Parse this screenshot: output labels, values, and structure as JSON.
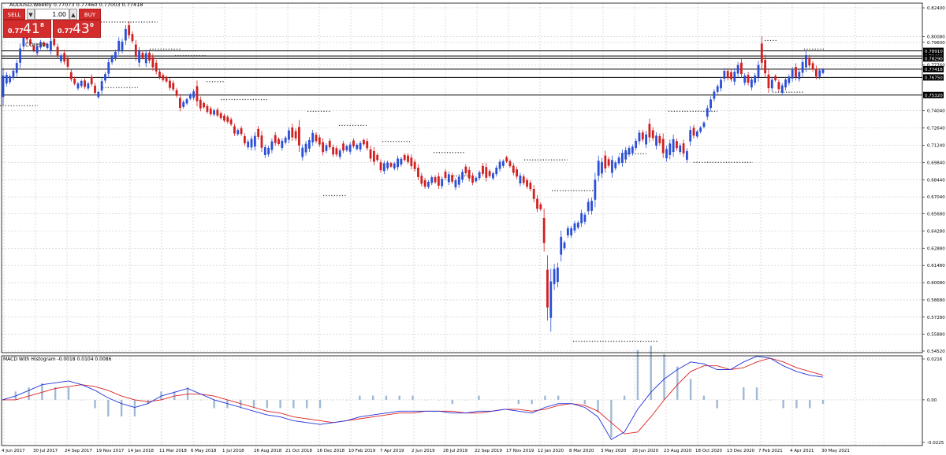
{
  "chart_header": "AUDUSD,Weekly  0.77073 0.77460 0.77003 0.77418",
  "indicator_label": "MACD With Histogram -0.0018 0.0104 0.0086",
  "indicator_name_overlay": "COresta",
  "trade_panel": {
    "sell_label": "SELL",
    "buy_label": "BUY",
    "lot_value": "1.00",
    "lot_down_arrow": "▼",
    "lot_up_arrow": "▲",
    "sell_price_small": "0.77",
    "sell_price_big": "41",
    "sell_price_sup": "8",
    "buy_price_small": "0.77",
    "buy_price_big": "43",
    "buy_price_sup": "0"
  },
  "colors": {
    "bull": "#2b4fd6",
    "bear": "#d21f1f",
    "grid": "#c8c8c8",
    "macd_line": "#2233dd",
    "signal_line": "#dd2222",
    "histogram": "#9fb9d6"
  },
  "chart_data": [
    {
      "type": "candlestick",
      "title": "AUDUSD,Weekly  0.77073 0.77460 0.77003 0.77418",
      "x_tick_labels": [
        "4 Jun 2017",
        "30 Jul 2017",
        "24 Sep 2017",
        "19 Nov 2017",
        "14 Jan 2018",
        "11 Mar 2018",
        "6 May 2018",
        "1 Jul 2018",
        "26 Aug 2018",
        "21 Oct 2018",
        "16 Dec 2018",
        "10 Feb 2019",
        "7 Apr 2019",
        "2 Jun 2019",
        "28 Jul 2019",
        "22 Sep 2019",
        "17 Nov 2019",
        "12 Jan 2020",
        "8 Mar 2020",
        "3 May 2020",
        "28 Jun 2020",
        "23 Aug 2020",
        "18 Oct 2020",
        "13 Dec 2020",
        "7 Feb 2021",
        "4 Apr 2021",
        "30 May 2021"
      ],
      "y_tick_labels": [
        "0.82400",
        "0.80080",
        "0.79600",
        "0.77760",
        "0.74040",
        "0.72640",
        "0.71240",
        "0.69840",
        "0.68440",
        "0.67040",
        "0.65680",
        "0.64280",
        "0.62880",
        "0.61480",
        "0.60080",
        "0.58680",
        "0.57280",
        "0.55880",
        "0.54520"
      ],
      "ylim": [
        0.5452,
        0.824
      ],
      "horizontal_levels": [
        {
          "label": "0.78910",
          "value": 0.7891
        },
        {
          "label": "0.78490",
          "value": 0.7849
        },
        {
          "label": "0.78290",
          "value": 0.7829
        },
        {
          "label": "0.77418",
          "value": 0.77418
        },
        {
          "label": "0.76750",
          "value": 0.7675
        },
        {
          "label": "0.75320",
          "value": 0.7532
        }
      ],
      "candles": [
        [
          0.745,
          0.775
        ],
        [
          0.76,
          0.772
        ],
        [
          0.762,
          0.77
        ],
        [
          0.765,
          0.775
        ],
        [
          0.768,
          0.782
        ],
        [
          0.775,
          0.795
        ],
        [
          0.79,
          0.802
        ],
        [
          0.795,
          0.812
        ],
        [
          0.793,
          0.8
        ],
        [
          0.788,
          0.795
        ],
        [
          0.785,
          0.795
        ],
        [
          0.79,
          0.798
        ],
        [
          0.792,
          0.797
        ],
        [
          0.79,
          0.796
        ],
        [
          0.786,
          0.8
        ],
        [
          0.792,
          0.801
        ],
        [
          0.783,
          0.795
        ],
        [
          0.779,
          0.787
        ],
        [
          0.778,
          0.79
        ],
        [
          0.774,
          0.785
        ],
        [
          0.764,
          0.774
        ],
        [
          0.761,
          0.768
        ],
        [
          0.757,
          0.764
        ],
        [
          0.759,
          0.766
        ],
        [
          0.758,
          0.767
        ],
        [
          0.757,
          0.764
        ],
        [
          0.76,
          0.77
        ],
        [
          0.753,
          0.763
        ],
        [
          0.75,
          0.757
        ],
        [
          0.754,
          0.767
        ],
        [
          0.763,
          0.772
        ],
        [
          0.767,
          0.783
        ],
        [
          0.778,
          0.786
        ],
        [
          0.781,
          0.79
        ],
        [
          0.786,
          0.8
        ],
        [
          0.787,
          0.799
        ],
        [
          0.794,
          0.81
        ],
        [
          0.799,
          0.813
        ],
        [
          0.795,
          0.805
        ],
        [
          0.781,
          0.798
        ],
        [
          0.776,
          0.792
        ],
        [
          0.782,
          0.789
        ],
        [
          0.776,
          0.79
        ],
        [
          0.779,
          0.79
        ],
        [
          0.773,
          0.787
        ],
        [
          0.77,
          0.782
        ],
        [
          0.766,
          0.774
        ],
        [
          0.764,
          0.771
        ],
        [
          0.763,
          0.769
        ],
        [
          0.757,
          0.767
        ],
        [
          0.756,
          0.765
        ],
        [
          0.751,
          0.759
        ],
        [
          0.74,
          0.754
        ],
        [
          0.742,
          0.749
        ],
        [
          0.745,
          0.751
        ],
        [
          0.749,
          0.755
        ],
        [
          0.749,
          0.758
        ],
        [
          0.744,
          0.765
        ],
        [
          0.74,
          0.752
        ],
        [
          0.742,
          0.748
        ],
        [
          0.738,
          0.746
        ],
        [
          0.736,
          0.744
        ],
        [
          0.736,
          0.742
        ],
        [
          0.735,
          0.743
        ],
        [
          0.733,
          0.74
        ],
        [
          0.731,
          0.738
        ],
        [
          0.73,
          0.737
        ],
        [
          0.728,
          0.735
        ],
        [
          0.72,
          0.73
        ],
        [
          0.72,
          0.726
        ],
        [
          0.72,
          0.728
        ],
        [
          0.712,
          0.722
        ],
        [
          0.709,
          0.717
        ],
        [
          0.708,
          0.72
        ],
        [
          0.708,
          0.723
        ],
        [
          0.717,
          0.728
        ],
        [
          0.707,
          0.724
        ],
        [
          0.702,
          0.713
        ],
        [
          0.703,
          0.712
        ],
        [
          0.706,
          0.718
        ],
        [
          0.712,
          0.723
        ],
        [
          0.712,
          0.719
        ],
        [
          0.708,
          0.718
        ],
        [
          0.713,
          0.72
        ],
        [
          0.714,
          0.727
        ],
        [
          0.716,
          0.73
        ],
        [
          0.716,
          0.726
        ],
        [
          0.707,
          0.733
        ],
        [
          0.7,
          0.713
        ],
        [
          0.704,
          0.716
        ],
        [
          0.707,
          0.719
        ],
        [
          0.712,
          0.725
        ],
        [
          0.714,
          0.723
        ],
        [
          0.711,
          0.721
        ],
        [
          0.704,
          0.718
        ],
        [
          0.706,
          0.714
        ],
        [
          0.709,
          0.718
        ],
        [
          0.703,
          0.713
        ],
        [
          0.703,
          0.712
        ],
        [
          0.701,
          0.71
        ],
        [
          0.706,
          0.716
        ],
        [
          0.707,
          0.713
        ],
        [
          0.705,
          0.715
        ],
        [
          0.71,
          0.718
        ],
        [
          0.708,
          0.714
        ],
        [
          0.707,
          0.716
        ],
        [
          0.712,
          0.718
        ],
        [
          0.708,
          0.718
        ],
        [
          0.699,
          0.712
        ],
        [
          0.696,
          0.711
        ],
        [
          0.699,
          0.706
        ],
        [
          0.69,
          0.701
        ],
        [
          0.689,
          0.7
        ],
        [
          0.692,
          0.7
        ],
        [
          0.694,
          0.699
        ],
        [
          0.692,
          0.699
        ],
        [
          0.692,
          0.704
        ],
        [
          0.695,
          0.703
        ],
        [
          0.699,
          0.706
        ],
        [
          0.697,
          0.706
        ],
        [
          0.693,
          0.705
        ],
        [
          0.691,
          0.701
        ],
        [
          0.684,
          0.697
        ],
        [
          0.679,
          0.69
        ],
        [
          0.677,
          0.686
        ],
        [
          0.677,
          0.684
        ],
        [
          0.68,
          0.688
        ],
        [
          0.681,
          0.688
        ],
        [
          0.677,
          0.69
        ],
        [
          0.677,
          0.687
        ],
        [
          0.684,
          0.693
        ],
        [
          0.68,
          0.691
        ],
        [
          0.681,
          0.69
        ],
        [
          0.676,
          0.686
        ],
        [
          0.678,
          0.689
        ],
        [
          0.682,
          0.693
        ],
        [
          0.688,
          0.697
        ],
        [
          0.683,
          0.695
        ],
        [
          0.68,
          0.69
        ],
        [
          0.682,
          0.687
        ],
        [
          0.684,
          0.692
        ],
        [
          0.687,
          0.698
        ],
        [
          0.683,
          0.698
        ],
        [
          0.686,
          0.693
        ],
        [
          0.684,
          0.691
        ],
        [
          0.687,
          0.696
        ],
        [
          0.691,
          0.701
        ],
        [
          0.694,
          0.701
        ],
        [
          0.698,
          0.704
        ],
        [
          0.694,
          0.701
        ],
        [
          0.688,
          0.698
        ],
        [
          0.685,
          0.695
        ],
        [
          0.679,
          0.69
        ],
        [
          0.68,
          0.689
        ],
        [
          0.677,
          0.686
        ],
        [
          0.675,
          0.684
        ],
        [
          0.666,
          0.68
        ],
        [
          0.658,
          0.672
        ],
        [
          0.659,
          0.666
        ],
        [
          0.626,
          0.661
        ],
        [
          0.57,
          0.623
        ],
        [
          0.561,
          0.612
        ],
        [
          0.595,
          0.616
        ],
        [
          0.597,
          0.617
        ],
        [
          0.618,
          0.643
        ],
        [
          0.627,
          0.635
        ],
        [
          0.637,
          0.647
        ],
        [
          0.637,
          0.647
        ],
        [
          0.641,
          0.651
        ],
        [
          0.644,
          0.651
        ],
        [
          0.646,
          0.66
        ],
        [
          0.648,
          0.658
        ],
        [
          0.656,
          0.669
        ],
        [
          0.656,
          0.67
        ],
        [
          0.662,
          0.69
        ],
        [
          0.683,
          0.704
        ],
        [
          0.686,
          0.702
        ],
        [
          0.69,
          0.708
        ],
        [
          0.694,
          0.703
        ],
        [
          0.686,
          0.704
        ],
        [
          0.692,
          0.7
        ],
        [
          0.696,
          0.704
        ],
        [
          0.695,
          0.709
        ],
        [
          0.698,
          0.711
        ],
        [
          0.703,
          0.712
        ],
        [
          0.704,
          0.713
        ],
        [
          0.708,
          0.718
        ],
        [
          0.713,
          0.725
        ],
        [
          0.715,
          0.725
        ],
        [
          0.71,
          0.724
        ],
        [
          0.715,
          0.734
        ],
        [
          0.716,
          0.727
        ],
        [
          0.709,
          0.723
        ],
        [
          0.712,
          0.722
        ],
        [
          0.702,
          0.722
        ],
        [
          0.699,
          0.712
        ],
        [
          0.701,
          0.717
        ],
        [
          0.703,
          0.721
        ],
        [
          0.708,
          0.718
        ],
        [
          0.705,
          0.714
        ],
        [
          0.703,
          0.717
        ],
        [
          0.698,
          0.71
        ],
        [
          0.712,
          0.728
        ],
        [
          0.718,
          0.729
        ],
        [
          0.718,
          0.725
        ],
        [
          0.722,
          0.728
        ],
        [
          0.726,
          0.732
        ],
        [
          0.733,
          0.745
        ],
        [
          0.74,
          0.752
        ],
        [
          0.748,
          0.758
        ],
        [
          0.754,
          0.762
        ],
        [
          0.756,
          0.768
        ],
        [
          0.764,
          0.775
        ],
        [
          0.765,
          0.775
        ],
        [
          0.764,
          0.774
        ],
        [
          0.761,
          0.775
        ],
        [
          0.768,
          0.78
        ],
        [
          0.767,
          0.783
        ],
        [
          0.761,
          0.771
        ],
        [
          0.761,
          0.772
        ],
        [
          0.757,
          0.768
        ],
        [
          0.761,
          0.771
        ],
        [
          0.764,
          0.781
        ],
        [
          0.774,
          0.801
        ],
        [
          0.767,
          0.786
        ],
        [
          0.755,
          0.774
        ],
        [
          0.756,
          0.768
        ],
        [
          0.764,
          0.77
        ],
        [
          0.756,
          0.766
        ],
        [
          0.753,
          0.763
        ],
        [
          0.757,
          0.768
        ],
        [
          0.761,
          0.77
        ],
        [
          0.764,
          0.776
        ],
        [
          0.765,
          0.779
        ],
        [
          0.764,
          0.774
        ],
        [
          0.768,
          0.783
        ],
        [
          0.772,
          0.789
        ],
        [
          0.775,
          0.786
        ],
        [
          0.772,
          0.781
        ],
        [
          0.766,
          0.777
        ],
        [
          0.766,
          0.775
        ],
        [
          0.77,
          0.775
        ]
      ]
    },
    {
      "type": "line",
      "title": "MACD With Histogram -0.0018 0.0104 0.0086",
      "y_tick_labels": [
        "0.0216",
        "0.00",
        "-0.0225"
      ],
      "ylim": [
        -0.0225,
        0.0216
      ],
      "series": [
        {
          "name": "MACD",
          "values": [
            0.0,
            0.002,
            0.005,
            0.008,
            0.009,
            0.01,
            0.008,
            0.005,
            0.001,
            -0.002,
            -0.004,
            -0.002,
            0.002,
            0.004,
            0.006,
            0.003,
            0.0,
            -0.002,
            -0.004,
            -0.006,
            -0.008,
            -0.009,
            -0.011,
            -0.012,
            -0.013,
            -0.012,
            -0.011,
            -0.009,
            -0.008,
            -0.007,
            -0.006,
            -0.006,
            -0.006,
            -0.006,
            -0.007,
            -0.007,
            -0.006,
            -0.006,
            -0.005,
            -0.006,
            -0.007,
            -0.004,
            -0.002,
            -0.002,
            -0.004,
            -0.009,
            -0.021,
            -0.017,
            -0.005,
            0.004,
            0.011,
            0.016,
            0.02,
            0.019,
            0.016,
            0.016,
            0.02,
            0.023,
            0.022,
            0.018,
            0.015,
            0.013,
            0.012
          ]
        },
        {
          "name": "Signal",
          "values": [
            0.0,
            0.0,
            0.002,
            0.004,
            0.006,
            0.007,
            0.008,
            0.007,
            0.005,
            0.002,
            0.0,
            -0.001,
            0.0,
            0.002,
            0.003,
            0.003,
            0.002,
            0.0,
            -0.002,
            -0.004,
            -0.006,
            -0.007,
            -0.009,
            -0.01,
            -0.011,
            -0.012,
            -0.011,
            -0.01,
            -0.009,
            -0.008,
            -0.007,
            -0.007,
            -0.006,
            -0.006,
            -0.006,
            -0.007,
            -0.007,
            -0.006,
            -0.005,
            -0.005,
            -0.006,
            -0.005,
            -0.003,
            -0.002,
            -0.003,
            -0.006,
            -0.012,
            -0.018,
            -0.017,
            -0.009,
            0.0,
            0.008,
            0.015,
            0.018,
            0.018,
            0.016,
            0.017,
            0.02,
            0.022,
            0.02,
            0.017,
            0.015,
            0.013
          ]
        }
      ]
    }
  ]
}
